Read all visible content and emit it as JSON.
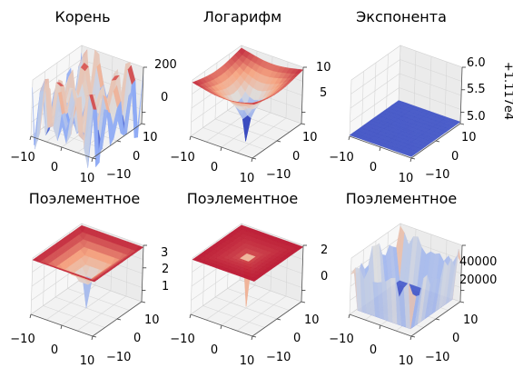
{
  "chart_data": [
    {
      "type": "surface3d",
      "title": "Корень",
      "x_ticks": [
        "−10",
        "0",
        "10"
      ],
      "y_ticks": [
        "10",
        "0",
        "−10"
      ],
      "z_ticks": [
        "200",
        "0"
      ],
      "x_range": [
        -10,
        10
      ],
      "y_range": [
        -10,
        10
      ],
      "z_range": [
        -150,
        210
      ],
      "surface": "sqrt",
      "colormap": "coolwarm"
    },
    {
      "type": "surface3d",
      "title": "Логарифм",
      "x_ticks": [
        "−10",
        "0",
        "10"
      ],
      "y_ticks": [
        "10",
        "0",
        "−10"
      ],
      "z_ticks": [
        "10",
        "5"
      ],
      "x_range": [
        -10,
        10
      ],
      "y_range": [
        -10,
        10
      ],
      "z_range": [
        -1,
        11
      ],
      "surface": "log",
      "colormap": "coolwarm"
    },
    {
      "type": "surface3d",
      "title": "Экспонента",
      "x_ticks": [
        "−10",
        "0",
        "10"
      ],
      "y_ticks": [
        "10",
        "0",
        "−10"
      ],
      "z_ticks": [
        "6.0",
        "5.5",
        "5.0"
      ],
      "z_offset_label": "+1.117e4",
      "x_range": [
        -10,
        10
      ],
      "y_range": [
        -10,
        10
      ],
      "z_range": [
        5.0,
        6.0
      ],
      "surface": "exp",
      "colormap": "coolwarm"
    },
    {
      "type": "surface3d",
      "title": "Поэлементное",
      "x_ticks": [
        "−10",
        "0",
        "10"
      ],
      "y_ticks": [
        "10",
        "0",
        "−10"
      ],
      "z_ticks": [
        "3",
        "2",
        "1"
      ],
      "x_range": [
        -10,
        10
      ],
      "y_range": [
        -10,
        10
      ],
      "z_range": [
        0.3,
        3.3
      ],
      "surface": "elem1",
      "colormap": "coolwarm"
    },
    {
      "type": "surface3d",
      "title": "Поэлементное",
      "x_ticks": [
        "−10",
        "0",
        "10"
      ],
      "y_ticks": [
        "10",
        "0",
        "−10"
      ],
      "z_ticks": [
        "2",
        "0"
      ],
      "x_range": [
        -10,
        10
      ],
      "y_range": [
        -10,
        10
      ],
      "z_range": [
        -1.3,
        2.4
      ],
      "surface": "elem2",
      "colormap": "coolwarm"
    },
    {
      "type": "surface3d",
      "title": "Поэлементное",
      "x_ticks": [
        "−10",
        "0",
        "10"
      ],
      "y_ticks": [
        "10",
        "0",
        "−10"
      ],
      "z_ticks": [
        "40000",
        "20000"
      ],
      "x_range": [
        -10,
        10
      ],
      "y_range": [
        -10,
        10
      ],
      "z_range": [
        0,
        50000
      ],
      "surface": "elem3",
      "colormap": "coolwarm"
    }
  ]
}
